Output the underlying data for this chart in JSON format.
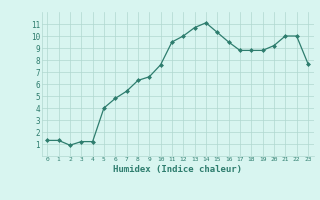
{
  "x": [
    0,
    1,
    2,
    3,
    4,
    5,
    6,
    7,
    8,
    9,
    10,
    11,
    12,
    13,
    14,
    15,
    16,
    17,
    18,
    19,
    20,
    21,
    22,
    23
  ],
  "y": [
    1.3,
    1.3,
    0.9,
    1.2,
    1.2,
    4.0,
    4.8,
    5.4,
    6.3,
    6.6,
    7.6,
    9.5,
    10.0,
    10.7,
    11.1,
    10.3,
    9.5,
    8.8,
    8.8,
    8.8,
    9.2,
    10.0,
    10.0,
    7.7
  ],
  "xlabel": "Humidex (Indice chaleur)",
  "line_color": "#2e7d6e",
  "marker_color": "#2e7d6e",
  "bg_color": "#d8f5f0",
  "grid_color": "#b0d8d0",
  "tick_label_color": "#2e7d6e",
  "xlim": [
    -0.5,
    23.5
  ],
  "ylim": [
    0.0,
    12.0
  ],
  "yticks": [
    1,
    2,
    3,
    4,
    5,
    6,
    7,
    8,
    9,
    10,
    11
  ],
  "xticks": [
    0,
    1,
    2,
    3,
    4,
    5,
    6,
    7,
    8,
    9,
    10,
    11,
    12,
    13,
    14,
    15,
    16,
    17,
    18,
    19,
    20,
    21,
    22,
    23
  ]
}
